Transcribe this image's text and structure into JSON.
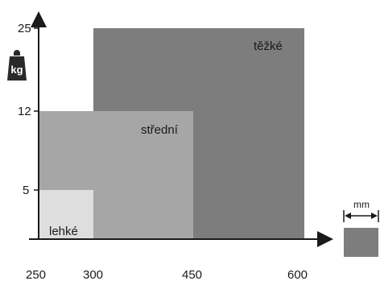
{
  "chart_data": {
    "type": "diagram",
    "x_ticks": [
      "250",
      "300",
      "450",
      "600"
    ],
    "y_ticks": [
      "5",
      "12",
      "25"
    ],
    "regions": [
      {
        "label": "těžké",
        "x_range": [
          300,
          600
        ],
        "y_range": [
          0,
          25
        ],
        "color": "#7d7d7d"
      },
      {
        "label": "střední",
        "x_range": [
          250,
          450
        ],
        "y_range": [
          0,
          12
        ],
        "color": "#a6a6a6"
      },
      {
        "label": "lehké",
        "x_range": [
          250,
          300
        ],
        "y_range": [
          0,
          5
        ],
        "color": "#dedede"
      }
    ]
  },
  "weight_icon": {
    "icon": "weight-icon",
    "label": "kg"
  },
  "size_legend": {
    "icon": "width-arrows-icon",
    "label": "mm",
    "color": "#7d7d7d"
  }
}
